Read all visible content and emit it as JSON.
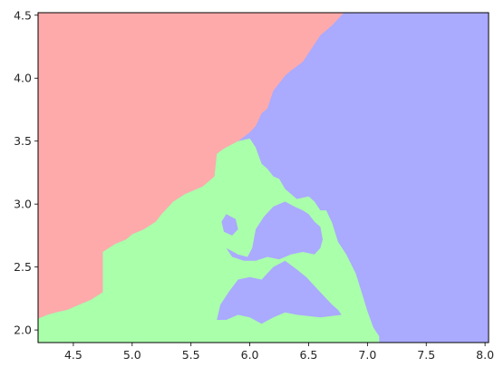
{
  "chart_data": {
    "type": "heatmap",
    "title": "",
    "xlabel": "",
    "ylabel": "",
    "xlim": [
      4.2,
      8.03
    ],
    "ylim": [
      1.9,
      4.52
    ],
    "x_ticks": [
      {
        "value": 4.5,
        "label": "4.5"
      },
      {
        "value": 5.0,
        "label": "5.0"
      },
      {
        "value": 5.5,
        "label": "5.5"
      },
      {
        "value": 6.0,
        "label": "6.0"
      },
      {
        "value": 6.5,
        "label": "6.5"
      },
      {
        "value": 7.0,
        "label": "7.0"
      },
      {
        "value": 7.5,
        "label": "7.5"
      },
      {
        "value": 8.0,
        "label": "8.0"
      }
    ],
    "y_ticks": [
      {
        "value": 2.0,
        "label": "2.0"
      },
      {
        "value": 2.5,
        "label": "2.5"
      },
      {
        "value": 3.0,
        "label": "3.0"
      },
      {
        "value": 3.5,
        "label": "3.5"
      },
      {
        "value": 4.0,
        "label": "4.0"
      },
      {
        "value": 4.5,
        "label": "4.5"
      }
    ],
    "grid": false,
    "legend": "none",
    "regions": [
      {
        "class": "red",
        "color": "#ffaaaa",
        "boundary": [
          [
            4.2,
            2.09
          ],
          [
            4.28,
            2.12
          ],
          [
            4.35,
            2.14
          ],
          [
            4.45,
            2.16
          ],
          [
            4.55,
            2.2
          ],
          [
            4.65,
            2.24
          ],
          [
            4.75,
            2.3
          ],
          [
            4.75,
            2.62
          ],
          [
            4.8,
            2.65
          ],
          [
            4.85,
            2.68
          ],
          [
            4.95,
            2.72
          ],
          [
            5.0,
            2.76
          ],
          [
            5.1,
            2.8
          ],
          [
            5.2,
            2.86
          ],
          [
            5.25,
            2.92
          ],
          [
            5.35,
            3.02
          ],
          [
            5.45,
            3.08
          ],
          [
            5.6,
            3.14
          ],
          [
            5.7,
            3.22
          ],
          [
            5.72,
            3.4
          ],
          [
            5.78,
            3.44
          ],
          [
            5.9,
            3.5
          ],
          [
            6.0,
            3.57
          ],
          [
            6.05,
            3.62
          ],
          [
            6.1,
            3.72
          ],
          [
            6.15,
            3.76
          ],
          [
            6.2,
            3.9
          ],
          [
            6.3,
            4.02
          ],
          [
            6.35,
            4.06
          ],
          [
            6.45,
            4.13
          ],
          [
            6.55,
            4.27
          ],
          [
            6.6,
            4.34
          ],
          [
            6.7,
            4.42
          ],
          [
            6.8,
            4.52
          ],
          [
            4.2,
            4.52
          ]
        ]
      },
      {
        "class": "green",
        "color": "#aaffaa",
        "boundary": [
          [
            4.2,
            1.9
          ],
          [
            7.1,
            1.9
          ],
          [
            7.1,
            1.95
          ],
          [
            7.05,
            2.02
          ],
          [
            7.0,
            2.15
          ],
          [
            6.95,
            2.3
          ],
          [
            6.9,
            2.45
          ],
          [
            6.82,
            2.6
          ],
          [
            6.75,
            2.7
          ],
          [
            6.7,
            2.85
          ],
          [
            6.65,
            2.95
          ],
          [
            6.6,
            2.95
          ],
          [
            6.55,
            3.02
          ],
          [
            6.5,
            3.06
          ],
          [
            6.4,
            3.04
          ],
          [
            6.3,
            3.12
          ],
          [
            6.25,
            3.2
          ],
          [
            6.2,
            3.22
          ],
          [
            6.15,
            3.28
          ],
          [
            6.1,
            3.32
          ],
          [
            6.05,
            3.45
          ],
          [
            6.0,
            3.52
          ],
          [
            5.9,
            3.5
          ],
          [
            5.78,
            3.44
          ],
          [
            5.72,
            3.4
          ],
          [
            5.7,
            3.22
          ],
          [
            5.6,
            3.14
          ],
          [
            5.45,
            3.08
          ],
          [
            5.35,
            3.02
          ],
          [
            5.25,
            2.92
          ],
          [
            5.2,
            2.86
          ],
          [
            5.1,
            2.8
          ],
          [
            5.0,
            2.76
          ],
          [
            4.95,
            2.72
          ],
          [
            4.85,
            2.68
          ],
          [
            4.8,
            2.65
          ],
          [
            4.75,
            2.62
          ],
          [
            4.75,
            2.3
          ],
          [
            4.65,
            2.24
          ],
          [
            4.55,
            2.2
          ],
          [
            4.45,
            2.16
          ],
          [
            4.35,
            2.14
          ],
          [
            4.28,
            2.12
          ],
          [
            4.2,
            2.09
          ]
        ]
      },
      {
        "class": "blue-pocket",
        "color": "#aaaaff",
        "boundary": [
          [
            5.72,
            2.08
          ],
          [
            5.75,
            2.2
          ],
          [
            5.82,
            2.3
          ],
          [
            5.9,
            2.4
          ],
          [
            6.0,
            2.42
          ],
          [
            6.1,
            2.4
          ],
          [
            6.2,
            2.5
          ],
          [
            6.3,
            2.55
          ],
          [
            6.4,
            2.48
          ],
          [
            6.48,
            2.42
          ],
          [
            6.55,
            2.35
          ],
          [
            6.62,
            2.28
          ],
          [
            6.7,
            2.2
          ],
          [
            6.75,
            2.16
          ],
          [
            6.78,
            2.12
          ],
          [
            6.6,
            2.1
          ],
          [
            6.4,
            2.12
          ],
          [
            6.3,
            2.14
          ],
          [
            6.2,
            2.1
          ],
          [
            6.1,
            2.05
          ],
          [
            6.0,
            2.1
          ],
          [
            5.9,
            2.12
          ],
          [
            5.8,
            2.08
          ]
        ]
      },
      {
        "class": "blue-pocket",
        "color": "#aaaaff",
        "boundary": [
          [
            5.8,
            2.65
          ],
          [
            5.9,
            2.6
          ],
          [
            5.98,
            2.58
          ],
          [
            6.02,
            2.65
          ],
          [
            6.05,
            2.8
          ],
          [
            6.12,
            2.9
          ],
          [
            6.2,
            2.98
          ],
          [
            6.3,
            3.02
          ],
          [
            6.38,
            2.98
          ],
          [
            6.45,
            2.95
          ],
          [
            6.5,
            2.92
          ],
          [
            6.55,
            2.86
          ],
          [
            6.6,
            2.82
          ],
          [
            6.62,
            2.72
          ],
          [
            6.6,
            2.65
          ],
          [
            6.55,
            2.6
          ],
          [
            6.45,
            2.62
          ],
          [
            6.35,
            2.6
          ],
          [
            6.25,
            2.56
          ],
          [
            6.15,
            2.58
          ],
          [
            6.05,
            2.55
          ],
          [
            5.95,
            2.55
          ],
          [
            5.85,
            2.58
          ]
        ]
      },
      {
        "class": "blue-pocket",
        "color": "#aaaaff",
        "boundary": [
          [
            6.98,
            3.22
          ],
          [
            7.03,
            3.2
          ],
          [
            7.05,
            3.14
          ],
          [
            7.02,
            3.08
          ],
          [
            6.98,
            3.1
          ],
          [
            6.95,
            3.15
          ]
        ]
      },
      {
        "class": "blue-pocket",
        "color": "#aaaaff",
        "boundary": [
          [
            5.8,
            2.92
          ],
          [
            5.88,
            2.88
          ],
          [
            5.9,
            2.8
          ],
          [
            5.85,
            2.75
          ],
          [
            5.78,
            2.78
          ],
          [
            5.76,
            2.86
          ]
        ]
      }
    ]
  }
}
